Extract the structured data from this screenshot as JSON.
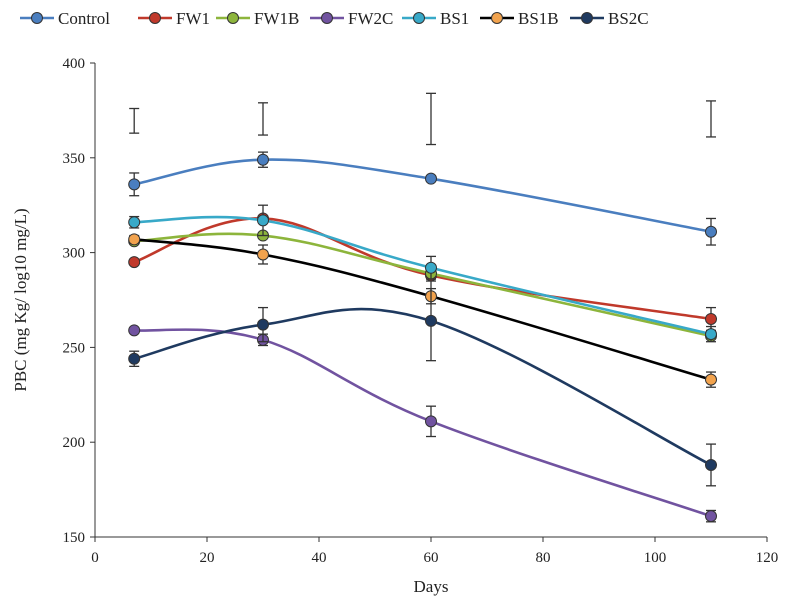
{
  "chart_data": {
    "type": "line",
    "title": "",
    "xlabel": "Days",
    "ylabel": "PBC (mg Kg/ log10 mg/L)",
    "xlim": [
      0,
      120
    ],
    "ylim": [
      150,
      400
    ],
    "xticks": [
      0,
      20,
      40,
      60,
      80,
      100,
      120
    ],
    "yticks": [
      150,
      200,
      250,
      300,
      350,
      400
    ],
    "grid": false,
    "legend_position": "top",
    "x": [
      7,
      30,
      60,
      110
    ],
    "series": [
      {
        "name": "Control",
        "color": "#4a7ebf",
        "marker_fill": "#4a7ebf",
        "values": [
          336,
          349,
          339,
          311
        ],
        "error": [
          6,
          4,
          0,
          7
        ]
      },
      {
        "name": "FW1",
        "color": "#c0392b",
        "marker_fill": "#c0392b",
        "values": [
          295,
          318,
          288,
          265
        ],
        "error": [
          0,
          0,
          0,
          6
        ]
      },
      {
        "name": "FW1B",
        "color": "#8db53c",
        "marker_fill": "#8db53c",
        "values": [
          306,
          309,
          289,
          256
        ],
        "error": [
          0,
          0,
          0,
          0
        ]
      },
      {
        "name": "FW2C",
        "color": "#7153a0",
        "marker_fill": "#7153a0",
        "values": [
          259,
          254,
          211,
          161
        ],
        "error": [
          0,
          3,
          8,
          3
        ]
      },
      {
        "name": "BS1",
        "color": "#38a9c8",
        "marker_fill": "#38a9c8",
        "values": [
          316,
          317,
          292,
          257
        ],
        "error": [
          3,
          8,
          6,
          4
        ]
      },
      {
        "name": "BS1B",
        "color": "#000000",
        "marker_fill": "#f2a34e",
        "values": [
          307,
          299,
          277,
          233
        ],
        "error": [
          2,
          5,
          4,
          4
        ]
      },
      {
        "name": "BS2C",
        "color": "#1f3a60",
        "marker_fill": "#1f3a60",
        "values": [
          244,
          262,
          264,
          188
        ],
        "error": [
          4,
          9,
          21,
          11
        ]
      }
    ],
    "floating_error_bars": [
      {
        "x": 7,
        "low": 363,
        "high": 376
      },
      {
        "x": 30,
        "low": 362,
        "high": 379
      },
      {
        "x": 60,
        "low": 357,
        "high": 384
      },
      {
        "x": 110,
        "low": 361,
        "high": 380
      }
    ]
  }
}
